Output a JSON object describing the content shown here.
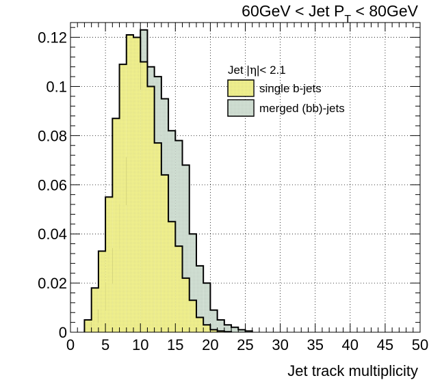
{
  "chart_data": {
    "type": "histogram",
    "title_parts": {
      "pre": "60GeV < Jet P",
      "sub": "T",
      "post": " < 80GeV"
    },
    "xlabel": "Jet track multiplicity",
    "ylabel": "",
    "xlim": [
      0,
      50
    ],
    "ylim": [
      0,
      0.126
    ],
    "bin_width": 1,
    "x_ticks": [
      0,
      5,
      10,
      15,
      20,
      25,
      30,
      35,
      40,
      45,
      50
    ],
    "y_ticks": [
      0,
      0.02,
      0.04,
      0.06,
      0.08,
      0.1,
      0.12
    ],
    "y_tick_labels": [
      "0",
      "0.02",
      "0.04",
      "0.06",
      "0.08",
      "0.1",
      "0.12"
    ],
    "grid": true,
    "legend_header": {
      "pre": "Jet |",
      "greek": "η",
      "post": "|< 2.1"
    },
    "legend_position": "top-right",
    "series": [
      {
        "name": "merged (bb)-jets",
        "color": "#d3e3d6",
        "x": [
          2,
          3,
          4,
          5,
          6,
          7,
          8,
          9,
          10,
          11,
          12,
          13,
          14,
          15,
          16,
          17,
          18,
          19,
          20,
          21,
          22,
          23,
          24,
          25
        ],
        "values": [
          0.001,
          0.004,
          0.009,
          0.02,
          0.034,
          0.052,
          0.071,
          0.099,
          0.123,
          0.108,
          0.104,
          0.095,
          0.082,
          0.078,
          0.068,
          0.04,
          0.027,
          0.02,
          0.009,
          0.005,
          0.003,
          0.002,
          0.001,
          0.0005
        ]
      },
      {
        "name": "single b-jets",
        "color": "#f6f68a",
        "x": [
          2,
          3,
          4,
          5,
          6,
          7,
          8,
          9,
          10,
          11,
          12,
          13,
          14,
          15,
          16,
          17,
          18,
          19,
          20,
          21,
          22
        ],
        "values": [
          0.005,
          0.018,
          0.033,
          0.055,
          0.087,
          0.109,
          0.121,
          0.12,
          0.11,
          0.1,
          0.077,
          0.064,
          0.045,
          0.035,
          0.022,
          0.013,
          0.006,
          0.003,
          0.001,
          0.0005,
          0.0002
        ]
      }
    ]
  }
}
